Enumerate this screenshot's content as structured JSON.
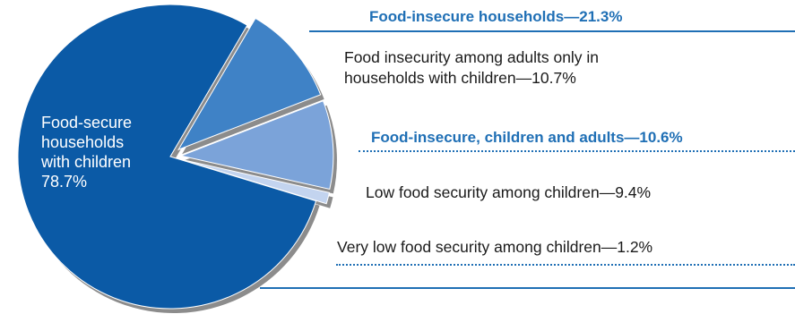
{
  "chart_data": {
    "type": "pie",
    "slices": [
      {
        "key": "secure",
        "label": "Food-secure households with children",
        "value_text": "78.7%",
        "value": 78.7,
        "color": "#0b5aa6"
      },
      {
        "key": "adults_only",
        "label": "Food insecurity among adults only in households with children—10.7%",
        "value": 10.7,
        "color": "#3f82c6"
      },
      {
        "key": "low_children",
        "label": "Low food security among children—9.4%",
        "value": 9.4,
        "color": "#7ba3d9"
      },
      {
        "key": "very_low_children",
        "label": "Very low food security among children—1.2%",
        "value": 1.2,
        "color": "#c3d4ef"
      }
    ],
    "group_labels": {
      "insecure_total": "Food-insecure households—21.3%",
      "children_and_adults": "Food-insecure, children and adults—10.6%"
    },
    "label_lines": {
      "secure_1": "Food-secure",
      "secure_2": "households",
      "secure_3": "with children",
      "adults_only_1": "Food insecurity among adults only in",
      "adults_only_2": "households with children—10.7%"
    }
  }
}
